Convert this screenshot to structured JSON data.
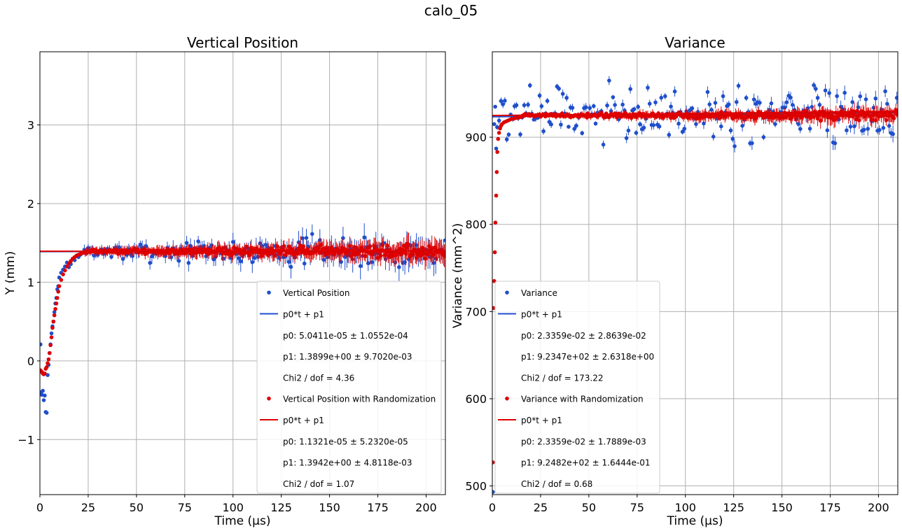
{
  "figure_title": "calo_05",
  "chart_data": [
    {
      "type": "scatter",
      "title": "Vertical Position",
      "xlabel": "Time (µs)",
      "ylabel": "Y (mm)",
      "xlim": [
        0,
        210
      ],
      "ylim": [
        -1.7,
        3.93
      ],
      "xticks": [
        "0",
        "25",
        "50",
        "75",
        "100",
        "125",
        "150",
        "175",
        "200"
      ],
      "xtick_values": [
        0,
        25,
        50,
        75,
        100,
        125,
        150,
        175,
        200
      ],
      "yticks": [
        "−1",
        "0",
        "1",
        "2",
        "3"
      ],
      "ytick_values": [
        -1,
        0,
        1,
        2,
        3
      ],
      "grid": true,
      "legend_position": "lower-right",
      "series": [
        {
          "name": "Vertical Position",
          "kind": "points",
          "color": "#1f4fcc",
          "rise_points": [
            [
              0.3,
              0.21
            ],
            [
              0.6,
              -0.4
            ],
            [
              1.0,
              -0.43
            ],
            [
              1.5,
              -0.38
            ],
            [
              2.0,
              -0.5
            ],
            [
              2.5,
              -0.44
            ],
            [
              3.0,
              -0.65
            ],
            [
              3.5,
              -0.66
            ],
            [
              4.0,
              -0.18
            ],
            [
              4.5,
              -0.05
            ],
            [
              5.0,
              0.1
            ],
            [
              5.5,
              0.21
            ],
            [
              6.0,
              0.35
            ],
            [
              6.5,
              0.44
            ],
            [
              7.0,
              0.5
            ],
            [
              7.5,
              0.62
            ],
            [
              8.0,
              0.73
            ],
            [
              8.5,
              0.8
            ],
            [
              9.0,
              0.91
            ],
            [
              9.5,
              0.95
            ],
            [
              10.0,
              1.06
            ],
            [
              11.0,
              1.12
            ],
            [
              12.0,
              1.16
            ],
            [
              13.0,
              1.2
            ],
            [
              14.0,
              1.25
            ],
            [
              15.0,
              1.19
            ],
            [
              16.0,
              1.23
            ],
            [
              17.0,
              1.3
            ],
            [
              18.0,
              1.28
            ],
            [
              19.0,
              1.33
            ],
            [
              20.0,
              1.32
            ],
            [
              21.0,
              1.35
            ],
            [
              22.0,
              1.37
            ]
          ],
          "plateau": {
            "x_start": 23,
            "x_end": 210,
            "step": 1,
            "level": 1.39,
            "spread_start": 0.08,
            "spread_end": 0.2,
            "error_start": 0.05,
            "error_end": 0.16
          }
        },
        {
          "name": "p0*t + p1",
          "kind": "line",
          "color": "#1f4fcc",
          "p0": 5.0411e-05,
          "p1": 1.3899
        },
        {
          "name": "Vertical Position with Randomization",
          "kind": "points",
          "color": "#dd0000",
          "rise_points": [
            [
              0.3,
              -0.12
            ],
            [
              1.0,
              -0.14
            ],
            [
              1.5,
              -0.16
            ],
            [
              2.0,
              -0.17
            ],
            [
              2.5,
              -0.16
            ],
            [
              3.0,
              -0.1
            ],
            [
              3.5,
              -0.08
            ],
            [
              4.0,
              -0.03
            ],
            [
              4.5,
              0.02
            ],
            [
              5.0,
              0.1
            ],
            [
              5.5,
              0.2
            ],
            [
              6.0,
              0.3
            ],
            [
              6.5,
              0.42
            ],
            [
              7.0,
              0.5
            ],
            [
              7.5,
              0.58
            ],
            [
              8.0,
              0.66
            ],
            [
              8.5,
              0.73
            ],
            [
              9.0,
              0.8
            ],
            [
              9.5,
              0.88
            ],
            [
              10.0,
              0.95
            ],
            [
              11.0,
              1.03
            ],
            [
              12.0,
              1.1
            ],
            [
              13.0,
              1.15
            ],
            [
              14.0,
              1.2
            ],
            [
              15.0,
              1.24
            ],
            [
              16.0,
              1.27
            ],
            [
              17.0,
              1.3
            ],
            [
              18.0,
              1.32
            ],
            [
              19.0,
              1.34
            ],
            [
              20.0,
              1.35
            ],
            [
              21.0,
              1.36
            ],
            [
              22.0,
              1.37
            ]
          ],
          "plateau": {
            "x_start": 23,
            "x_end": 210,
            "step": 0.5,
            "level": 1.394,
            "spread_start": 0.02,
            "spread_end": 0.08,
            "error_start": 0.04,
            "error_end": 0.12
          }
        },
        {
          "name": "p0*t + p1",
          "kind": "line",
          "color": "#dd0000",
          "p0": 1.1321e-05,
          "p1": 1.3942
        }
      ],
      "legend": [
        {
          "marker": "point",
          "color": "#1f4fcc",
          "text": "Vertical Position"
        },
        {
          "marker": "line",
          "color": "#1f4fcc",
          "text": "p0*t + p1"
        },
        {
          "marker": "none",
          "text": "p0: 5.0411e-05 ± 1.0552e-04"
        },
        {
          "marker": "none",
          "text": "p1: 1.3899e+00 ± 9.7020e-03"
        },
        {
          "marker": "none",
          "text": "Chi2 / dof = 4.36"
        },
        {
          "marker": "point",
          "color": "#dd0000",
          "text": "Vertical Position with Randomization"
        },
        {
          "marker": "line",
          "color": "#dd0000",
          "text": "p0*t + p1"
        },
        {
          "marker": "none",
          "text": "p0: 1.1321e-05 ± 5.2320e-05"
        },
        {
          "marker": "none",
          "text": "p1: 1.3942e+00 ± 4.8118e-03"
        },
        {
          "marker": "none",
          "text": "Chi2 / dof = 1.07"
        }
      ]
    },
    {
      "type": "scatter",
      "title": "Variance",
      "xlabel": "Time (µs)",
      "ylabel": "Variance (mm^2)",
      "xlim": [
        0,
        210
      ],
      "ylim": [
        490,
        998
      ],
      "xticks": [
        "0",
        "25",
        "50",
        "75",
        "100",
        "125",
        "150",
        "175",
        "200"
      ],
      "xtick_values": [
        0,
        25,
        50,
        75,
        100,
        125,
        150,
        175,
        200
      ],
      "yticks": [
        "500",
        "600",
        "700",
        "800",
        "900"
      ],
      "ytick_values": [
        500,
        600,
        700,
        800,
        900
      ],
      "grid": true,
      "legend_position": "lower-left",
      "series": [
        {
          "name": "Variance",
          "kind": "points",
          "color": "#1f4fcc",
          "rise_points": [
            [
              0.3,
              493
            ],
            [
              1.0,
              915
            ],
            [
              1.5,
              935
            ],
            [
              2.0,
              887
            ]
          ],
          "plateau": {
            "x_start": 2.5,
            "x_end": 210,
            "step": 1,
            "level": 927,
            "spread_start": 30,
            "spread_end": 30,
            "error_start": 3,
            "error_end": 7
          }
        },
        {
          "name": "p0*t + p1",
          "kind": "line",
          "color": "#1f4fcc",
          "p0": 0.023359,
          "p1": 923.47
        },
        {
          "name": "Variance with Randomization",
          "kind": "points",
          "color": "#dd0000",
          "rise_points": [
            [
              0.3,
              527
            ],
            [
              0.6,
              704
            ],
            [
              1.0,
              735
            ],
            [
              1.3,
              768
            ],
            [
              1.6,
              802
            ],
            [
              2.0,
              833
            ],
            [
              2.3,
              860
            ],
            [
              2.6,
              883
            ],
            [
              3.0,
              898
            ],
            [
              3.5,
              905
            ],
            [
              4.0,
              910
            ],
            [
              4.5,
              913
            ],
            [
              5.0,
              915
            ],
            [
              6.0,
              917
            ],
            [
              7.0,
              918
            ],
            [
              8.0,
              919
            ],
            [
              9.0,
              920
            ],
            [
              10.0,
              921
            ],
            [
              11.0,
              921
            ],
            [
              12.0,
              922
            ],
            [
              13.0,
              922
            ],
            [
              14.0,
              923
            ],
            [
              15.0,
              923
            ]
          ],
          "plateau": {
            "x_start": 15.5,
            "x_end": 210,
            "step": 0.5,
            "level": 925,
            "spread_start": 1.5,
            "spread_end": 5,
            "error_start": 2,
            "error_end": 8
          }
        },
        {
          "name": "p0*t + p1",
          "kind": "line",
          "color": "#dd0000",
          "p0": 0.023359,
          "p1": 924.82
        }
      ],
      "legend": [
        {
          "marker": "point",
          "color": "#1f4fcc",
          "text": "Variance"
        },
        {
          "marker": "line",
          "color": "#1f4fcc",
          "text": "p0*t + p1"
        },
        {
          "marker": "none",
          "text": "p0: 2.3359e-02 ± 2.8639e-02"
        },
        {
          "marker": "none",
          "text": "p1: 9.2347e+02 ± 2.6318e+00"
        },
        {
          "marker": "none",
          "text": "Chi2 / dof = 173.22"
        },
        {
          "marker": "point",
          "color": "#dd0000",
          "text": "Variance with Randomization"
        },
        {
          "marker": "line",
          "color": "#dd0000",
          "text": "p0*t + p1"
        },
        {
          "marker": "none",
          "text": "p0: 2.3359e-02 ± 1.7889e-03"
        },
        {
          "marker": "none",
          "text": "p1: 9.2482e+02 ± 1.6444e-01"
        },
        {
          "marker": "none",
          "text": "Chi2 / dof = 0.68"
        }
      ]
    }
  ]
}
